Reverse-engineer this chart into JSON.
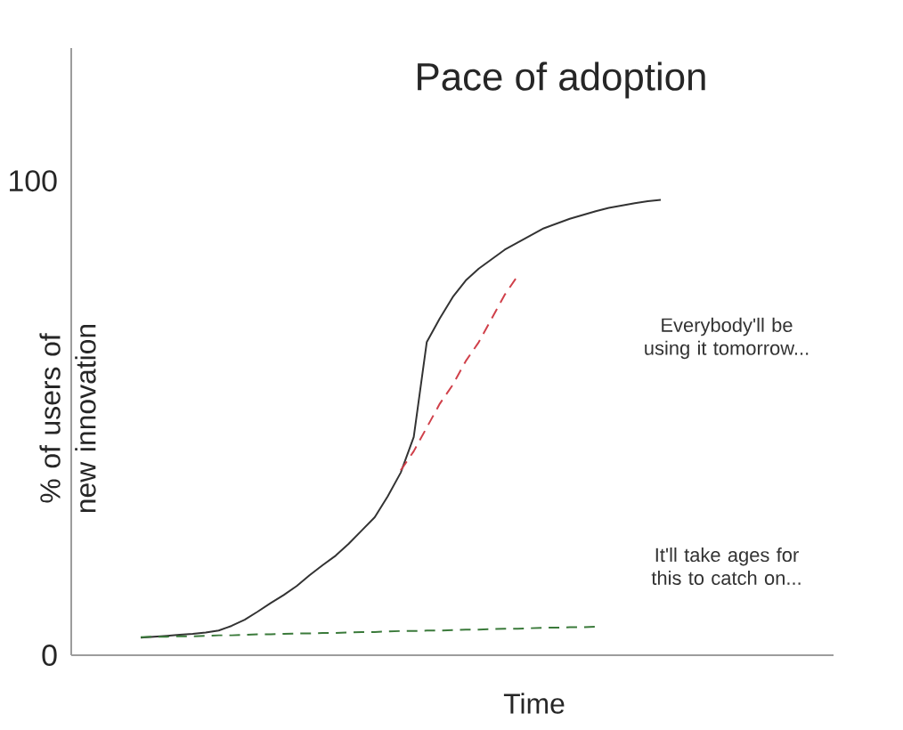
{
  "chart_data": {
    "type": "line",
    "title": "Pace of adoption",
    "xlabel": "Time",
    "ylabel": "% of users of new innovation",
    "categories": [
      null,
      null,
      null,
      null,
      null,
      null,
      null,
      null,
      null,
      null,
      null,
      null,
      null,
      null,
      null,
      null,
      null,
      null,
      null,
      null,
      null,
      null,
      null,
      null,
      null,
      null,
      null,
      null,
      null,
      null,
      null,
      null,
      null,
      null,
      null,
      null,
      null,
      null,
      null,
      null,
      null
    ],
    "series": [
      {
        "color": "#333333",
        "line_style": "solid",
        "values": [
          3.7,
          3.9,
          4.1,
          4.3,
          4.5,
          4.8,
          5.2,
          6.2,
          7.5,
          9.2,
          11,
          12.7,
          14.6,
          16.9,
          19,
          21,
          23.5,
          26.3,
          29.1,
          33.5,
          38.5,
          46,
          66,
          71,
          75.5,
          79,
          81.5,
          83.5,
          85.5,
          87,
          88.5,
          90,
          91,
          92,
          92.8,
          93.6,
          94.3,
          94.8,
          95.3,
          95.7,
          96
        ]
      },
      {
        "color": "#d0404a",
        "line_style": "dashed",
        "values": [
          null,
          null,
          null,
          null,
          null,
          null,
          null,
          null,
          null,
          null,
          null,
          null,
          null,
          null,
          null,
          null,
          null,
          null,
          null,
          null,
          39,
          43,
          48,
          53,
          57,
          62,
          66,
          71,
          76,
          80,
          null,
          null,
          null,
          null,
          null,
          null,
          null,
          null,
          null,
          null,
          null
        ]
      },
      {
        "color": "#3a7a3a",
        "line_style": "dashed",
        "values": [
          3.8,
          3.9,
          3.9,
          4,
          4,
          4.1,
          4.2,
          4.2,
          4.3,
          4.4,
          4.4,
          4.5,
          4.6,
          4.6,
          4.7,
          4.7,
          4.8,
          4.9,
          4.9,
          5,
          5.1,
          5.1,
          5.2,
          5.2,
          5.3,
          5.4,
          5.4,
          5.5,
          5.6,
          5.6,
          5.7,
          5.8,
          5.8,
          5.9,
          5.9,
          6,
          null,
          null,
          null,
          null,
          null
        ]
      }
    ],
    "ylim": [
      0,
      128
    ],
    "yticks": [
      0,
      100
    ],
    "tick_labels": "y",
    "annotations": [
      "Everybody'll be using it tomorrow...",
      "It'll take ages for this to catch on..."
    ]
  }
}
